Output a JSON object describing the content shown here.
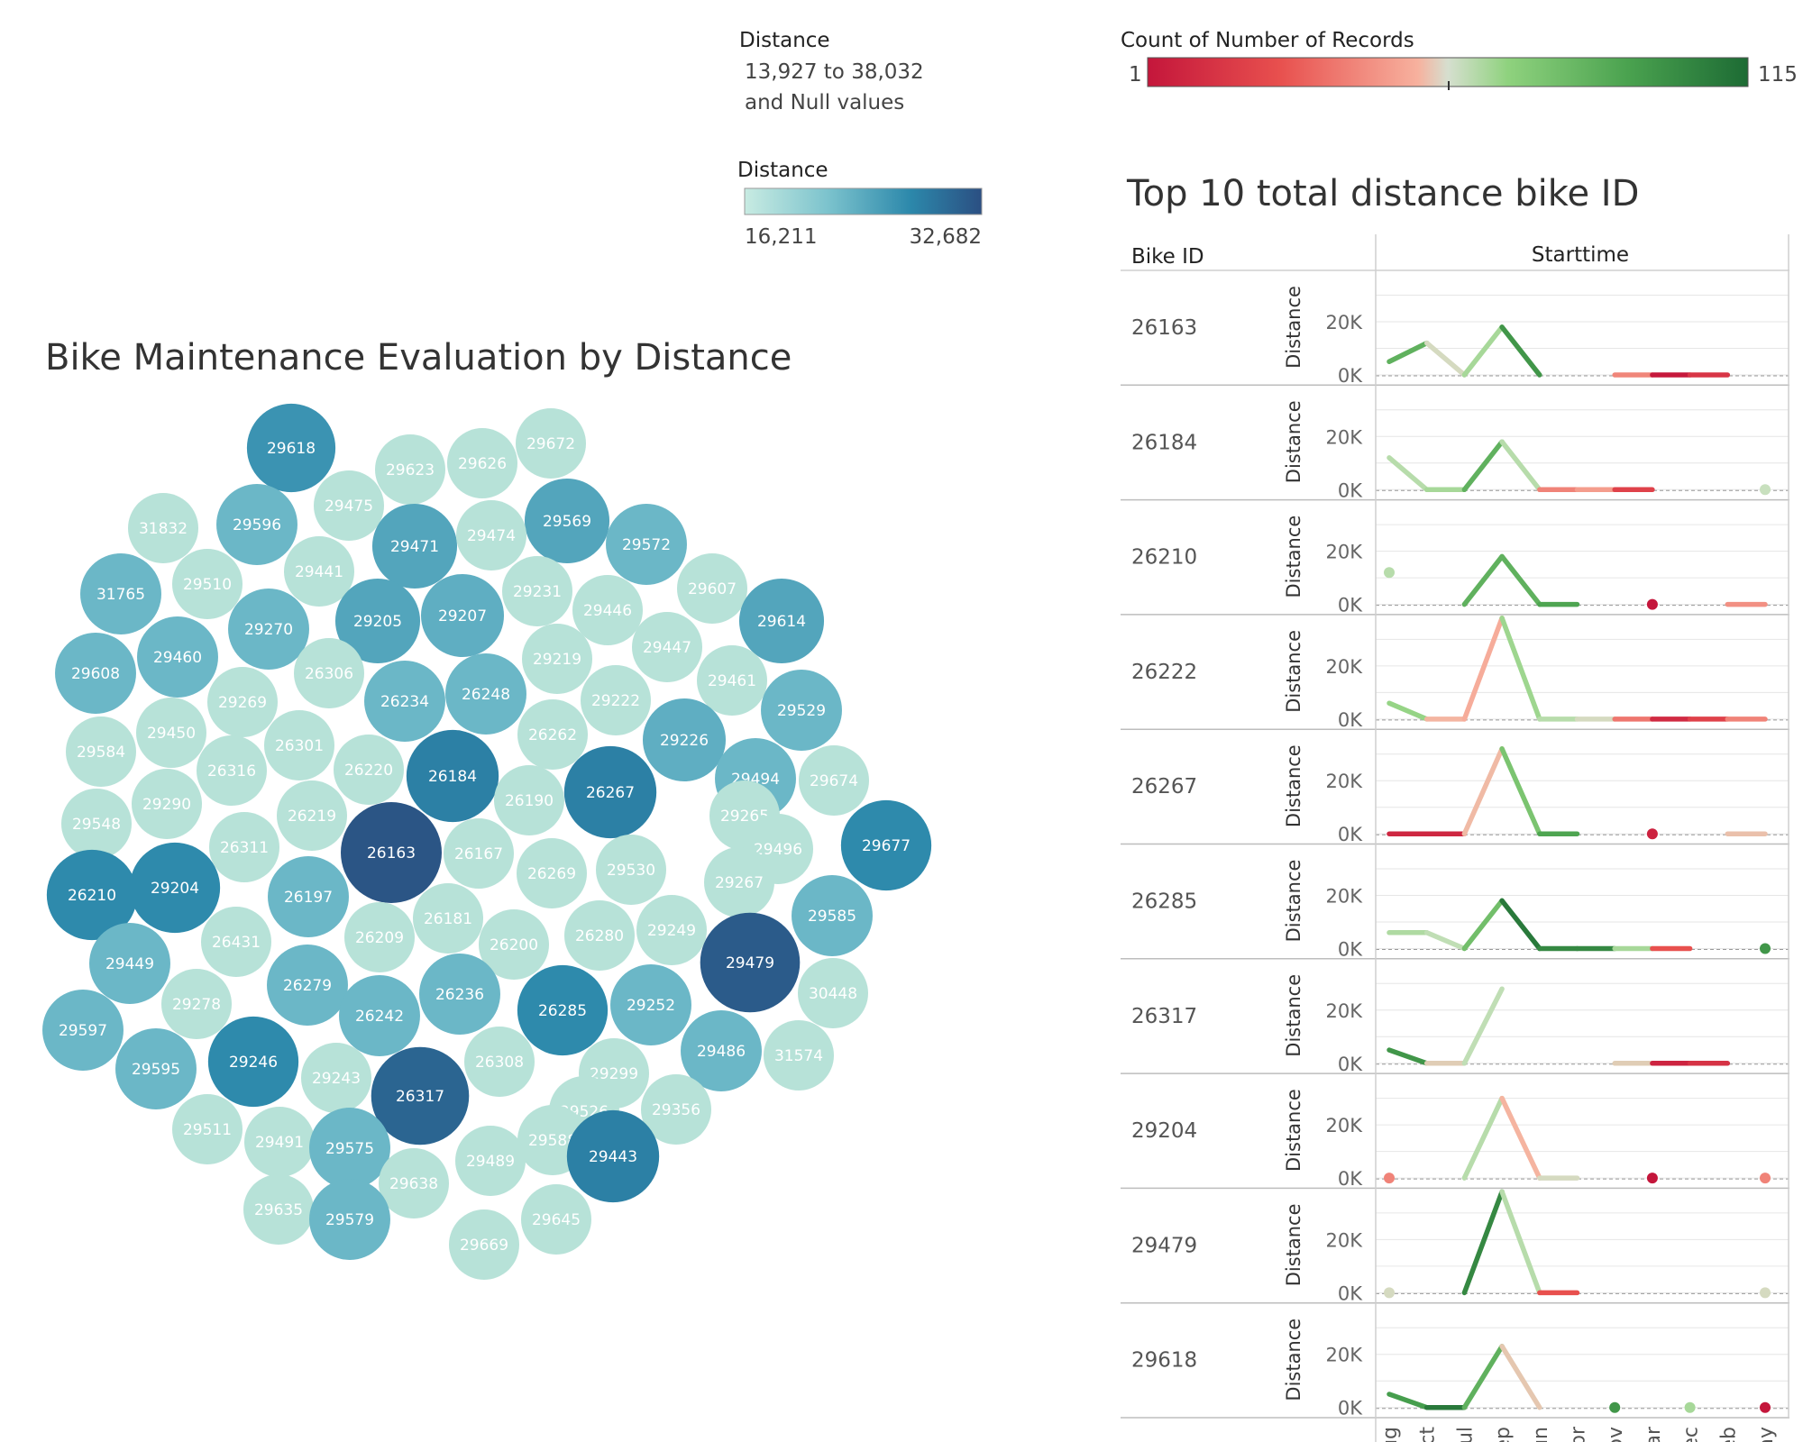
{
  "legends": {
    "size_legend": {
      "title": "Distance",
      "line1": "13,927 to 38,032",
      "line2": "and Null values"
    },
    "color_legend": {
      "title": "Distance",
      "min_label": "16,211",
      "max_label": "32,682"
    },
    "count_legend": {
      "title": "Count of Number of Records",
      "min_label": "1",
      "max_label": "115"
    }
  },
  "colors": {
    "blue_scale": [
      "#b7e2d8",
      "#6fbac9",
      "#2c88ab",
      "#2b5585"
    ],
    "count_scale": [
      "#c4163b",
      "#e8504e",
      "#f7b19e",
      "#cfe2c6",
      "#8fd27e",
      "#4aa24f",
      "#1d6b34"
    ],
    "gridline": "#e6e6e6",
    "axis": "#999999"
  },
  "chart_data": [
    {
      "type": "packed-bubble",
      "title": "Bike Maintenance Evaluation by Distance",
      "color_domain": [
        16211,
        32682
      ],
      "bubbles": [
        {
          "label": "29618",
          "value": 26000
        },
        {
          "label": "29672",
          "value": 16211
        },
        {
          "label": "29623",
          "value": 16211
        },
        {
          "label": "29626",
          "value": 16211
        },
        {
          "label": "31832",
          "value": 16211
        },
        {
          "label": "29596",
          "value": 22000
        },
        {
          "label": "29475",
          "value": 16211
        },
        {
          "label": "29569",
          "value": 24000
        },
        {
          "label": "29471",
          "value": 24000
        },
        {
          "label": "29474",
          "value": 16211
        },
        {
          "label": "29572",
          "value": 22000
        },
        {
          "label": "29441",
          "value": 16211
        },
        {
          "label": "29510",
          "value": 16211
        },
        {
          "label": "31765",
          "value": 22000
        },
        {
          "label": "29231",
          "value": 16211
        },
        {
          "label": "29607",
          "value": 16211
        },
        {
          "label": "29446",
          "value": 16211
        },
        {
          "label": "29614",
          "value": 24000
        },
        {
          "label": "29205",
          "value": 24000
        },
        {
          "label": "29207",
          "value": 23000
        },
        {
          "label": "29270",
          "value": 22000
        },
        {
          "label": "29608",
          "value": 22000
        },
        {
          "label": "29460",
          "value": 22000
        },
        {
          "label": "29447",
          "value": 16211
        },
        {
          "label": "29219",
          "value": 16211
        },
        {
          "label": "26306",
          "value": 16211
        },
        {
          "label": "29461",
          "value": 16211
        },
        {
          "label": "29269",
          "value": 16211
        },
        {
          "label": "26234",
          "value": 22000
        },
        {
          "label": "26248",
          "value": 22000
        },
        {
          "label": "29222",
          "value": 16211
        },
        {
          "label": "29529",
          "value": 22000
        },
        {
          "label": "29450",
          "value": 16211
        },
        {
          "label": "29584",
          "value": 16211
        },
        {
          "label": "26301",
          "value": 16211
        },
        {
          "label": "26262",
          "value": 16211
        },
        {
          "label": "29226",
          "value": 23000
        },
        {
          "label": "26316",
          "value": 16211
        },
        {
          "label": "26220",
          "value": 16211
        },
        {
          "label": "26184",
          "value": 28000
        },
        {
          "label": "29494",
          "value": 22000
        },
        {
          "label": "29674",
          "value": 16211
        },
        {
          "label": "29290",
          "value": 16211
        },
        {
          "label": "26267",
          "value": 28000
        },
        {
          "label": "26190",
          "value": 16211
        },
        {
          "label": "29548",
          "value": 16211
        },
        {
          "label": "26219",
          "value": 16211
        },
        {
          "label": "29265",
          "value": 16211
        },
        {
          "label": "26311",
          "value": 16211
        },
        {
          "label": "26163",
          "value": 32682
        },
        {
          "label": "26167",
          "value": 16211
        },
        {
          "label": "29496",
          "value": 16211
        },
        {
          "label": "29677",
          "value": 27000
        },
        {
          "label": "29204",
          "value": 27000
        },
        {
          "label": "26197",
          "value": 22000
        },
        {
          "label": "26269",
          "value": 16211
        },
        {
          "label": "29530",
          "value": 16211
        },
        {
          "label": "26210",
          "value": 27000
        },
        {
          "label": "29267",
          "value": 16211
        },
        {
          "label": "26181",
          "value": 16211
        },
        {
          "label": "29585",
          "value": 22000
        },
        {
          "label": "26431",
          "value": 16211
        },
        {
          "label": "26209",
          "value": 16211
        },
        {
          "label": "26200",
          "value": 16211
        },
        {
          "label": "26280",
          "value": 16211
        },
        {
          "label": "29249",
          "value": 16211
        },
        {
          "label": "29449",
          "value": 22000
        },
        {
          "label": "29479",
          "value": 32000
        },
        {
          "label": "26279",
          "value": 22000
        },
        {
          "label": "26236",
          "value": 22000
        },
        {
          "label": "30448",
          "value": 16211
        },
        {
          "label": "29278",
          "value": 16211
        },
        {
          "label": "26242",
          "value": 22000
        },
        {
          "label": "26285",
          "value": 27000
        },
        {
          "label": "29252",
          "value": 22000
        },
        {
          "label": "29597",
          "value": 22000
        },
        {
          "label": "29486",
          "value": 22000
        },
        {
          "label": "29246",
          "value": 27000
        },
        {
          "label": "29595",
          "value": 22000
        },
        {
          "label": "31574",
          "value": 16211
        },
        {
          "label": "26308",
          "value": 16211
        },
        {
          "label": "29243",
          "value": 16211
        },
        {
          "label": "29299",
          "value": 16211
        },
        {
          "label": "26317",
          "value": 31000
        },
        {
          "label": "29526",
          "value": 16211
        },
        {
          "label": "29356",
          "value": 16211
        },
        {
          "label": "29588",
          "value": 16211
        },
        {
          "label": "29511",
          "value": 16211
        },
        {
          "label": "29491",
          "value": 16211
        },
        {
          "label": "29575",
          "value": 22000
        },
        {
          "label": "29443",
          "value": 28000
        },
        {
          "label": "29489",
          "value": 16211
        },
        {
          "label": "29638",
          "value": 16211
        },
        {
          "label": "29635",
          "value": 16211
        },
        {
          "label": "29579",
          "value": 22000
        },
        {
          "label": "29645",
          "value": 16211
        },
        {
          "label": "29669",
          "value": 16211
        }
      ]
    },
    {
      "type": "line",
      "title": "Top 10 total distance bike ID",
      "row_header": "Bike ID",
      "column_header": "Starttime",
      "ylabel": "Distance",
      "ylim": [
        0,
        35000
      ],
      "yticks": [
        0,
        20000
      ],
      "ytick_labels": [
        "0K",
        "20K"
      ],
      "categories": [
        "Aug",
        "Oct",
        "Jul",
        "Sep",
        "Jun",
        "Apr",
        "Nov",
        "Mar",
        "Dec",
        "Feb",
        "May"
      ],
      "count_domain": [
        1,
        115
      ],
      "series": [
        {
          "name": "26163",
          "values": [
            5000,
            12000,
            0,
            18000,
            0,
            null,
            0,
            0,
            0,
            0,
            null
          ],
          "counts": [
            100,
            80,
            30,
            110,
            90,
            null,
            60,
            1,
            3,
            20,
            null
          ]
        },
        {
          "name": "26184",
          "values": [
            12000,
            0,
            0,
            18000,
            0,
            0,
            0,
            0,
            null,
            null,
            0
          ],
          "counts": [
            60,
            70,
            70,
            110,
            20,
            40,
            30,
            1,
            null,
            null,
            60
          ]
        },
        {
          "name": "26210",
          "values": [
            12000,
            null,
            0,
            18000,
            0,
            0,
            null,
            0,
            null,
            0,
            0
          ],
          "counts": [
            65,
            null,
            100,
            80,
            100,
            90,
            null,
            1,
            null,
            5,
            60
          ]
        },
        {
          "name": "26222",
          "values": [
            6000,
            0,
            0,
            38000,
            0,
            0,
            0,
            0,
            0,
            0,
            0
          ],
          "counts": [
            70,
            80,
            1,
            75,
            70,
            60,
            50,
            5,
            10,
            20,
            40
          ]
        },
        {
          "name": "26267",
          "values": [
            0,
            0,
            0,
            32000,
            0,
            0,
            null,
            0,
            null,
            0,
            0
          ],
          "counts": [
            10,
            3,
            10,
            75,
            90,
            100,
            null,
            5,
            null,
            20,
            70
          ]
        },
        {
          "name": "26285",
          "values": [
            6000,
            6000,
            0,
            18000,
            0,
            0,
            0,
            0,
            0,
            null,
            0
          ],
          "counts": [
            70,
            65,
            60,
            110,
            110,
            100,
            110,
            30,
            10,
            null,
            100
          ]
        },
        {
          "name": "26317",
          "values": [
            5000,
            0,
            0,
            28000,
            null,
            null,
            0,
            0,
            0,
            0,
            null
          ],
          "counts": [
            110,
            90,
            10,
            115,
            null,
            null,
            90,
            10,
            1,
            20,
            null
          ]
        },
        {
          "name": "29204",
          "values": [
            0,
            null,
            0,
            30000,
            0,
            0,
            null,
            0,
            null,
            null,
            0
          ],
          "counts": [
            30,
            null,
            70,
            60,
            20,
            90,
            null,
            1,
            null,
            null,
            30
          ]
        },
        {
          "name": "29479",
          "values": [
            0,
            null,
            0,
            38000,
            0,
            0,
            null,
            null,
            null,
            null,
            0
          ],
          "counts": [
            55,
            null,
            100,
            110,
            20,
            20,
            null,
            null,
            null,
            null,
            55
          ]
        },
        {
          "name": "29618",
          "values": [
            5000,
            0,
            0,
            23000,
            0,
            null,
            0,
            null,
            0,
            null,
            0
          ],
          "counts": [
            85,
            110,
            110,
            70,
            25,
            null,
            100,
            null,
            70,
            null,
            1
          ]
        }
      ]
    }
  ]
}
